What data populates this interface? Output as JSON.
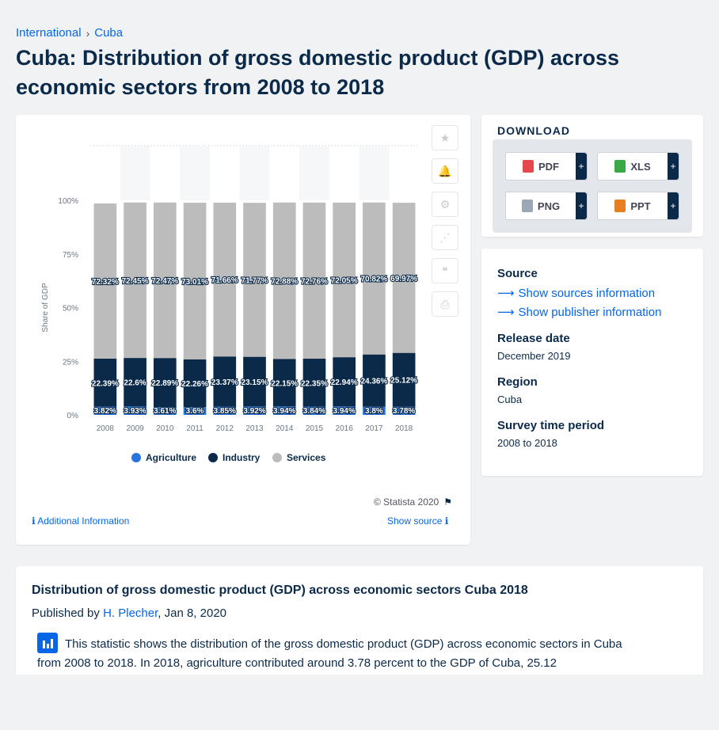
{
  "breadcrumb": {
    "items": [
      "International",
      "Cuba"
    ],
    "separator": "›"
  },
  "page_title": "Cuba: Distribution of gross domestic product (GDP) across economic sectors from 2008 to 2018",
  "chart_data": {
    "type": "bar",
    "stacked": true,
    "categories": [
      "2008",
      "2009",
      "2010",
      "2011",
      "2012",
      "2013",
      "2014",
      "2015",
      "2016",
      "2017",
      "2018"
    ],
    "series": [
      {
        "name": "Agriculture",
        "color": "#2876dd",
        "values": [
          3.82,
          3.93,
          3.61,
          3.6,
          3.85,
          3.92,
          3.94,
          3.84,
          3.94,
          3.8,
          3.78
        ],
        "labels": [
          "3.82%",
          "3.93%",
          "3.61%",
          "3.6%",
          "3.85%",
          "3.92%",
          "3.94%",
          "3.84%",
          "3.94%",
          "3.8%",
          "3.78%"
        ]
      },
      {
        "name": "Industry",
        "color": "#0b2a4a",
        "values": [
          22.39,
          22.6,
          22.89,
          22.26,
          23.37,
          23.15,
          22.15,
          22.35,
          22.94,
          24.36,
          25.12
        ],
        "labels": [
          "22.39%",
          "22.6%",
          "22.89%",
          "22.26%",
          "23.37%",
          "23.15%",
          "22.15%",
          "22.35%",
          "22.94%",
          "24.36%",
          "25.12%"
        ]
      },
      {
        "name": "Services",
        "color": "#bcbcbc",
        "values": [
          72.32,
          72.45,
          72.47,
          73.01,
          71.66,
          71.77,
          72.88,
          72.76,
          72.05,
          70.82,
          69.97
        ],
        "labels": [
          "72.32%",
          "72.45%",
          "72.47%",
          "73.01%",
          "71.66%",
          "71.77%",
          "72.88%",
          "72.76%",
          "72.05%",
          "70.82%",
          "69.97%"
        ]
      }
    ],
    "ylabel": "Share of GDP",
    "yticks": [
      "0%",
      "25%",
      "50%",
      "75%",
      "100%"
    ],
    "ylim": [
      0,
      100
    ]
  },
  "tools": [
    {
      "name": "star-icon",
      "glyph": "★"
    },
    {
      "name": "bell-icon",
      "glyph": "🔔"
    },
    {
      "name": "gear-icon",
      "glyph": "⚙"
    },
    {
      "name": "share-icon",
      "glyph": "⋰"
    },
    {
      "name": "quote-icon",
      "glyph": "❝"
    },
    {
      "name": "print-icon",
      "glyph": "⎙"
    }
  ],
  "copyright": "© Statista 2020",
  "additional_info": "Additional Information",
  "show_source": "Show source",
  "download": {
    "title": "DOWNLOAD",
    "buttons": [
      {
        "label": "PDF",
        "color": "#e5484d"
      },
      {
        "label": "XLS",
        "color": "#39a845"
      },
      {
        "label": "PNG",
        "color": "#9aa7b4"
      },
      {
        "label": "PPT",
        "color": "#e67e22"
      }
    ],
    "plus": "+"
  },
  "info": {
    "source_h": "Source",
    "sources_link": "Show sources information",
    "publisher_link": "Show publisher information",
    "release_h": "Release date",
    "release_v": "December 2019",
    "region_h": "Region",
    "region_v": "Cuba",
    "period_h": "Survey time period",
    "period_v": "2008 to 2018"
  },
  "description": {
    "title": "Distribution of gross domestic product (GDP) across economic sectors Cuba 2018",
    "published_prefix": "Published by",
    "author": "H. Plecher",
    "date": ", Jan 8, 2020",
    "text": "This statistic shows the distribution of the gross domestic product (GDP) across economic sectors in Cuba from 2008 to 2018. In 2018, agriculture contributed around 3.78 percent to the GDP of Cuba, 25.12"
  }
}
